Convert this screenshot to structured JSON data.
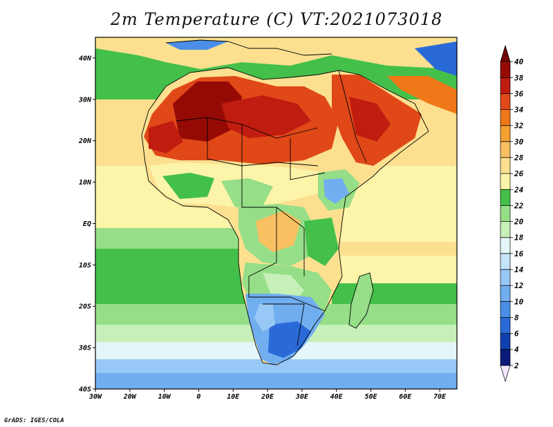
{
  "title": "2m Temperature (C) VT:2021073018",
  "footer": "GrADS: IGES/COLA",
  "map": {
    "x_range": [
      -30,
      75
    ],
    "y_range": [
      -40,
      45
    ],
    "lon_ticks": [
      {
        "value": -30,
        "label": "30W"
      },
      {
        "value": -20,
        "label": "20W"
      },
      {
        "value": -10,
        "label": "10W"
      },
      {
        "value": 0,
        "label": "0"
      },
      {
        "value": 10,
        "label": "10E"
      },
      {
        "value": 20,
        "label": "20E"
      },
      {
        "value": 30,
        "label": "30E"
      },
      {
        "value": 40,
        "label": "40E"
      },
      {
        "value": 50,
        "label": "50E"
      },
      {
        "value": 60,
        "label": "60E"
      },
      {
        "value": 70,
        "label": "70E"
      }
    ],
    "lat_ticks": [
      {
        "value": 40,
        "label": "40N"
      },
      {
        "value": 30,
        "label": "30N"
      },
      {
        "value": 20,
        "label": "20N"
      },
      {
        "value": 10,
        "label": "10N"
      },
      {
        "value": 0,
        "label": "EQ"
      },
      {
        "value": -10,
        "label": "10S"
      },
      {
        "value": -20,
        "label": "20S"
      },
      {
        "value": -30,
        "label": "30S"
      },
      {
        "value": -40,
        "label": "40S"
      }
    ]
  },
  "colorbar": {
    "labels": [
      "2",
      "4",
      "6",
      "8",
      "10",
      "12",
      "14",
      "16",
      "18",
      "20",
      "22",
      "24",
      "26",
      "28",
      "30",
      "32",
      "34",
      "36",
      "38",
      "40"
    ],
    "colors": [
      "#f0e6ff",
      "#0a1a7a",
      "#1040b0",
      "#2a6ad8",
      "#4a8ee8",
      "#70aef0",
      "#98c8f6",
      "#c4e4fa",
      "#e4f6f8",
      "#c6f0b8",
      "#96de88",
      "#44c04a",
      "#fcf4a8",
      "#fce090",
      "#f8c060",
      "#f4a030",
      "#f07818",
      "#e04818",
      "#c01c10",
      "#960a06",
      "#6e0400"
    ]
  }
}
